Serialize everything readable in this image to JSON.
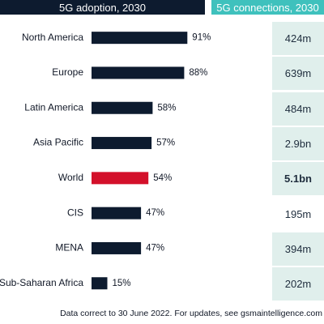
{
  "headers": {
    "adoption": "5G adoption, 2030",
    "connections": "5G connections, 2030"
  },
  "colors": {
    "header_dark": "#0d1b2f",
    "header_teal": "#3fc1bd",
    "bar_default": "#0d1b2f",
    "bar_highlight": "#d3102a",
    "cell_bg": "#e0efec"
  },
  "chart_data": {
    "type": "bar",
    "orientation": "horizontal",
    "title": "5G adoption, 2030",
    "categories": [
      "North America",
      "Europe",
      "Latin America",
      "Asia Pacific",
      "World",
      "CIS",
      "MENA",
      "Sub-Saharan Africa"
    ],
    "values": [
      91,
      88,
      58,
      57,
      54,
      47,
      47,
      15
    ],
    "value_labels": [
      "91%",
      "88%",
      "58%",
      "57%",
      "54%",
      "47%",
      "47%",
      "15%"
    ],
    "highlight": "World",
    "xlim": [
      0,
      100
    ],
    "grid": false
  },
  "connections": {
    "values": [
      "424m",
      "639m",
      "484m",
      "2.9bn",
      "5.1bn",
      "195m",
      "394m",
      "202m"
    ],
    "bold_index": 4,
    "white_index": 5
  },
  "footnote": "Data correct to 30 June 2022. For updates, see gsmaintelligence.com"
}
